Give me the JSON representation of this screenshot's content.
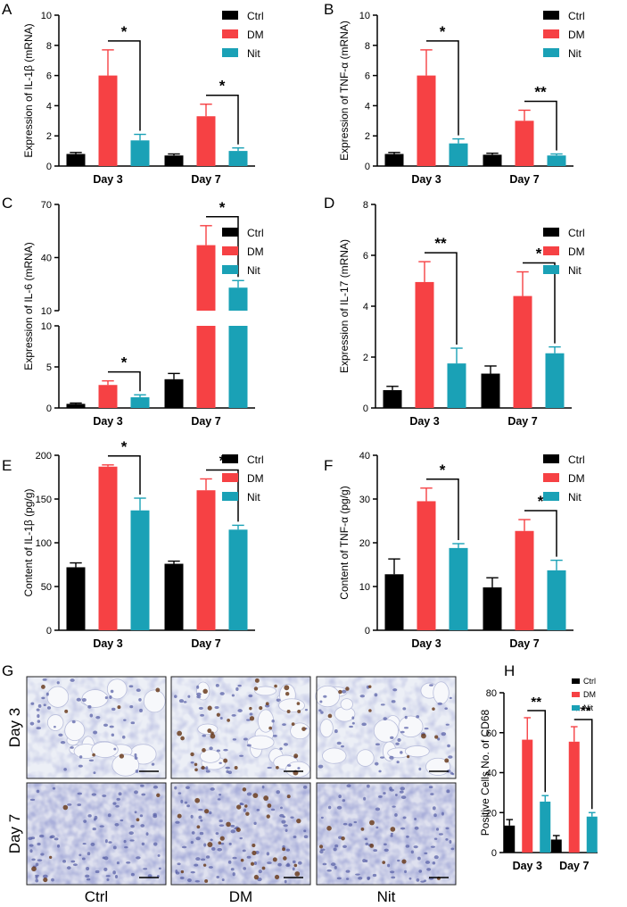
{
  "colors": {
    "Ctrl": "#000000",
    "DM": "#f64144",
    "Nit": "#1aa1b6"
  },
  "panels": [
    "A",
    "B",
    "C",
    "D",
    "E",
    "F",
    "G",
    "H"
  ],
  "micrograph": {
    "rows": [
      "Day 3",
      "Day 7"
    ],
    "columns": [
      "Ctrl",
      "DM",
      "Nit"
    ]
  },
  "chart_data": [
    {
      "panel": "A",
      "type": "bar",
      "ylabel": "Expression of IL-1β (mRNA)",
      "xlabel": "",
      "categories": [
        "Day 3",
        "Day 7"
      ],
      "ylim": [
        0,
        10
      ],
      "yticks": [
        "0",
        "2",
        "4",
        "6",
        "8",
        "10"
      ],
      "series": [
        {
          "name": "Ctrl",
          "values": [
            0.8,
            0.7
          ],
          "errors": [
            0.1,
            0.1
          ]
        },
        {
          "name": "DM",
          "values": [
            6.0,
            3.3
          ],
          "errors": [
            1.7,
            0.8
          ]
        },
        {
          "name": "Nit",
          "values": [
            1.7,
            1.0
          ],
          "errors": [
            0.4,
            0.2
          ]
        }
      ],
      "significance": [
        "*",
        "*"
      ],
      "legend": "top-right"
    },
    {
      "panel": "B",
      "type": "bar",
      "ylabel": "Expression of TNF-α (mRNA)",
      "xlabel": "",
      "categories": [
        "Day 3",
        "Day 7"
      ],
      "ylim": [
        0,
        10
      ],
      "yticks": [
        "0",
        "2",
        "4",
        "6",
        "8",
        "10"
      ],
      "series": [
        {
          "name": "Ctrl",
          "values": [
            0.8,
            0.75
          ],
          "errors": [
            0.1,
            0.1
          ]
        },
        {
          "name": "DM",
          "values": [
            6.0,
            3.0
          ],
          "errors": [
            1.7,
            0.7
          ]
        },
        {
          "name": "Nit",
          "values": [
            1.5,
            0.7
          ],
          "errors": [
            0.3,
            0.1
          ]
        }
      ],
      "significance": [
        "*",
        "**"
      ],
      "legend": "top-right"
    },
    {
      "panel": "C",
      "type": "bar",
      "axis_break": true,
      "ylabel": "Expression of IL-6 (mRNA)",
      "xlabel": "",
      "categories": [
        "Day 3",
        "Day 7"
      ],
      "ylim_lower": [
        0,
        10
      ],
      "yticks_lower": [
        "0",
        "5",
        "10"
      ],
      "ylim_upper": [
        10,
        70
      ],
      "yticks_upper": [
        "10",
        "40",
        "70"
      ],
      "series": [
        {
          "name": "Ctrl",
          "values": [
            0.5,
            3.5
          ],
          "errors": [
            0.1,
            0.7
          ]
        },
        {
          "name": "DM",
          "values": [
            2.8,
            47.0
          ],
          "errors": [
            0.5,
            11.0
          ]
        },
        {
          "name": "Nit",
          "values": [
            1.3,
            23.0
          ],
          "errors": [
            0.3,
            4.0
          ]
        }
      ],
      "significance": [
        "*",
        "*"
      ],
      "legend": "top-right"
    },
    {
      "panel": "D",
      "type": "bar",
      "ylabel": "Expression of IL-17 (mRNA)",
      "xlabel": "",
      "categories": [
        "Day 3",
        "Day 7"
      ],
      "ylim": [
        0,
        8
      ],
      "yticks": [
        "0",
        "2",
        "4",
        "6",
        "8"
      ],
      "series": [
        {
          "name": "Ctrl",
          "values": [
            0.7,
            1.35
          ],
          "errors": [
            0.15,
            0.3
          ]
        },
        {
          "name": "DM",
          "values": [
            4.95,
            4.4
          ],
          "errors": [
            0.8,
            0.95
          ]
        },
        {
          "name": "Nit",
          "values": [
            1.75,
            2.15
          ],
          "errors": [
            0.6,
            0.25
          ]
        }
      ],
      "significance": [
        "**",
        "*"
      ],
      "legend": "top-right"
    },
    {
      "panel": "E",
      "type": "bar",
      "ylabel": "Content of IL-1β (pg/g)",
      "xlabel": "",
      "categories": [
        "Day 3",
        "Day 7"
      ],
      "ylim": [
        0,
        200
      ],
      "yticks": [
        "0",
        "50",
        "100",
        "150",
        "200"
      ],
      "series": [
        {
          "name": "Ctrl",
          "values": [
            72,
            76
          ],
          "errors": [
            5,
            3
          ]
        },
        {
          "name": "DM",
          "values": [
            187,
            160
          ],
          "errors": [
            2,
            13
          ]
        },
        {
          "name": "Nit",
          "values": [
            137,
            115
          ],
          "errors": [
            14,
            5
          ]
        }
      ],
      "significance": [
        "*",
        "*"
      ],
      "legend": "top-right"
    },
    {
      "panel": "F",
      "type": "bar",
      "ylabel": "Content of TNF-α (pg/g)",
      "xlabel": "",
      "categories": [
        "Day 3",
        "Day 7"
      ],
      "ylim": [
        0,
        40
      ],
      "yticks": [
        "0",
        "10",
        "20",
        "30",
        "40"
      ],
      "series": [
        {
          "name": "Ctrl",
          "values": [
            12.8,
            9.8
          ],
          "errors": [
            3.5,
            2.2
          ]
        },
        {
          "name": "DM",
          "values": [
            29.5,
            22.7
          ],
          "errors": [
            3.0,
            2.6
          ]
        },
        {
          "name": "Nit",
          "values": [
            18.8,
            13.7
          ],
          "errors": [
            1.0,
            2.3
          ]
        }
      ],
      "significance": [
        "*",
        "*"
      ],
      "legend": "top-right"
    },
    {
      "panel": "H",
      "type": "bar",
      "ylabel": "Positive Cells No. of CD68",
      "xlabel": "",
      "categories": [
        "Day 3",
        "Day 7"
      ],
      "ylim": [
        0,
        80
      ],
      "yticks": [
        "0",
        "20",
        "40",
        "60",
        "80"
      ],
      "series": [
        {
          "name": "Ctrl",
          "values": [
            13.5,
            6.5
          ],
          "errors": [
            3.0,
            2.0
          ]
        },
        {
          "name": "DM",
          "values": [
            56.5,
            55.5
          ],
          "errors": [
            11.0,
            7.5
          ]
        },
        {
          "name": "Nit",
          "values": [
            25.5,
            18.0
          ],
          "errors": [
            3.0,
            2.0
          ]
        }
      ],
      "significance": [
        "**",
        "***"
      ],
      "legend": "top-right"
    }
  ]
}
